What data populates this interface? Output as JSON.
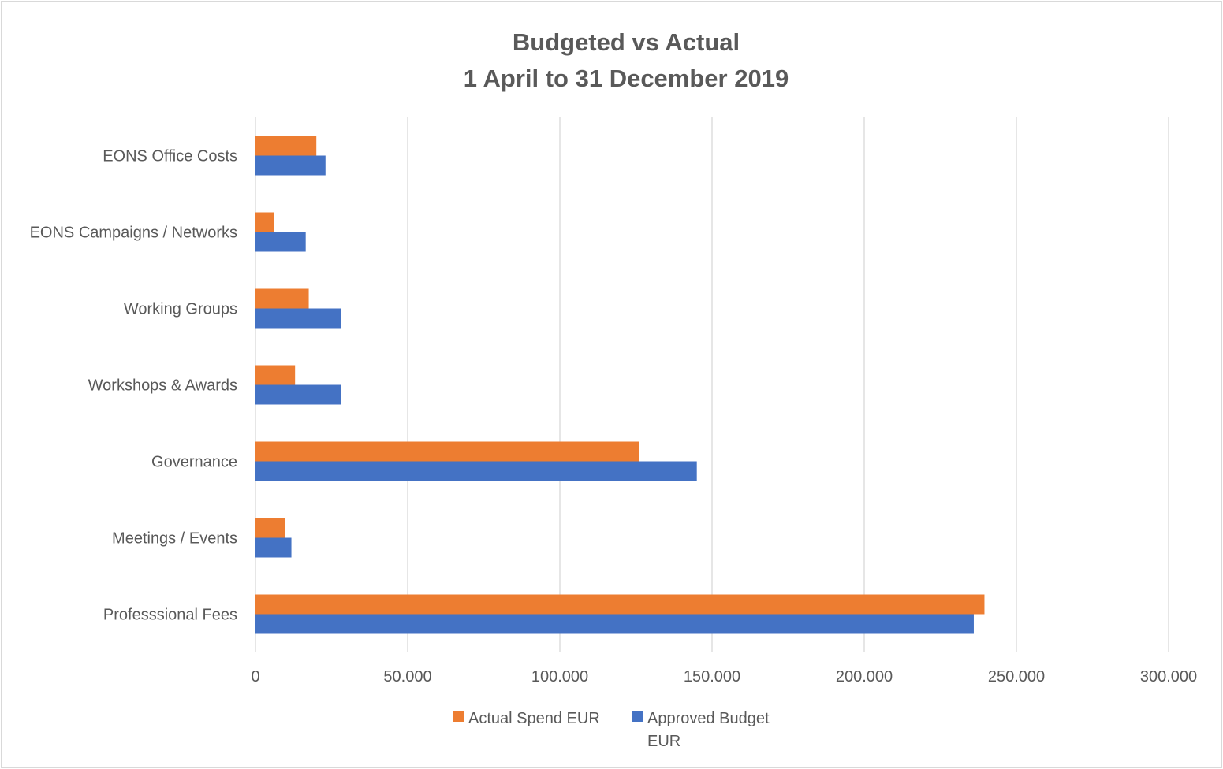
{
  "chart_data": {
    "type": "bar",
    "orientation": "horizontal",
    "title": [
      "Budgeted vs Actual",
      "1 April to 31 December 2019"
    ],
    "categories": [
      "EONS Office Costs",
      "EONS Campaigns / Networks",
      "Working Groups",
      "Workshops & Awards",
      "Governance",
      "Meetings / Events",
      "Professsional Fees"
    ],
    "series": [
      {
        "name": "Actual Spend EUR",
        "color": "#ed7d31",
        "values": [
          20000,
          6200,
          17500,
          13000,
          126000,
          9800,
          239500
        ]
      },
      {
        "name": "Approved Budget EUR",
        "color": "#4472c4",
        "values": [
          23000,
          16500,
          28000,
          28000,
          145000,
          11800,
          236000
        ]
      }
    ],
    "xlim": [
      0,
      300000
    ],
    "xticks": [
      0,
      50000,
      100000,
      150000,
      200000,
      250000,
      300000
    ],
    "xtick_labels": [
      "0",
      "50.000",
      "100.000",
      "150.000",
      "200.000",
      "250.000",
      "300.000"
    ],
    "xlabel": "",
    "ylabel": "",
    "grid": "vertical",
    "legend_position": "bottom",
    "legend_labels": [
      [
        "Actual Spend EUR"
      ],
      [
        "Approved Budget",
        "EUR"
      ]
    ],
    "gridline_color": "#d9d9d9"
  }
}
